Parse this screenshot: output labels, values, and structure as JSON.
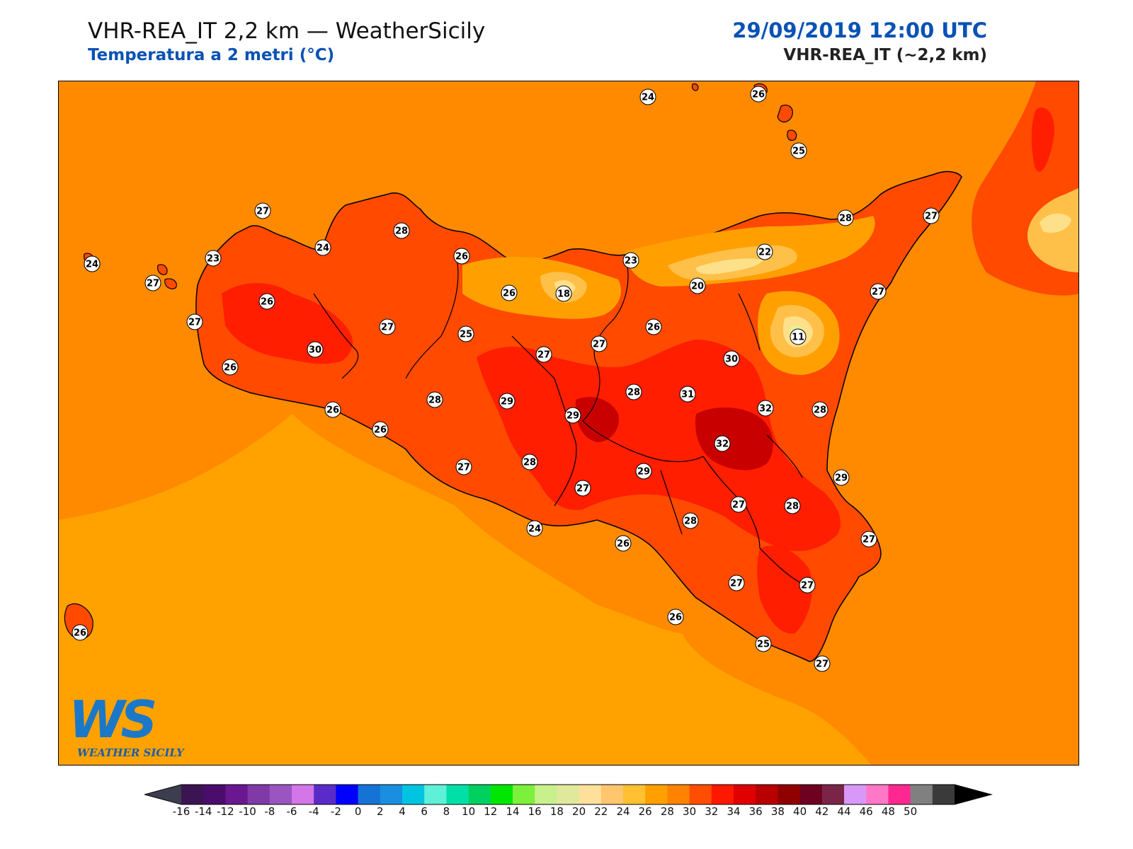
{
  "header": {
    "title": "VHR-REA_IT 2,2 km — WeatherSicily",
    "subtitle": "Temperatura a 2 metri (°C)",
    "datetime": "29/09/2019 12:00 UTC",
    "model": "VHR-REA_IT (~2,2 km)"
  },
  "logo": {
    "letters": "WS",
    "caption": "WEATHER SICILY"
  },
  "colors": {
    "sea": "#ff8a00",
    "sea_south": "#ffa200",
    "land_warm": "#ff4a00",
    "land_hot": "#ff1e00",
    "land_hottest": "#c80000",
    "mountain_mild": "#ffc04a",
    "mountain_cool": "#ffe08a",
    "etna_top": "#e6f09a",
    "coastline": "#000000"
  },
  "temperature_labels": [
    {
      "name": "label-ustica",
      "value": "24"
    },
    {
      "name": "label-alicudi",
      "value": "24"
    },
    {
      "name": "label-stromboli",
      "value": "26"
    },
    {
      "name": "label-lipari",
      "value": "25"
    },
    {
      "name": "label-levanzo",
      "value": "24"
    },
    {
      "name": "label-marettimo",
      "value": "27"
    },
    {
      "name": "label-san-vito",
      "value": "27"
    },
    {
      "name": "label-trapani",
      "value": "23"
    },
    {
      "name": "label-castellammare",
      "value": "24"
    },
    {
      "name": "label-palermo",
      "value": "28"
    },
    {
      "name": "label-termini",
      "value": "26"
    },
    {
      "name": "label-cefalu",
      "value": "23"
    },
    {
      "name": "label-capo-orlando",
      "value": "22"
    },
    {
      "name": "label-milazzo",
      "value": "28"
    },
    {
      "name": "label-messina",
      "value": "27"
    },
    {
      "name": "label-marsala",
      "value": "27"
    },
    {
      "name": "label-erice",
      "value": "26"
    },
    {
      "name": "label-corleone",
      "value": "27"
    },
    {
      "name": "label-castelvetrano",
      "value": "30"
    },
    {
      "name": "label-mazara",
      "value": "26"
    },
    {
      "name": "label-prizzi",
      "value": "25"
    },
    {
      "name": "label-caltavuturo",
      "value": "26"
    },
    {
      "name": "label-madonie",
      "value": "18"
    },
    {
      "name": "label-nebrodi",
      "value": "20"
    },
    {
      "name": "label-taormina",
      "value": "27"
    },
    {
      "name": "label-etna",
      "value": "11"
    },
    {
      "name": "label-nicosia",
      "value": "26"
    },
    {
      "name": "label-petralia",
      "value": "27"
    },
    {
      "name": "label-valledolmo",
      "value": "27"
    },
    {
      "name": "label-bronte",
      "value": "30"
    },
    {
      "name": "label-sciacca",
      "value": "26"
    },
    {
      "name": "label-ribera",
      "value": "26"
    },
    {
      "name": "label-bivona",
      "value": "28"
    },
    {
      "name": "label-mussomeli",
      "value": "29"
    },
    {
      "name": "label-caltanissetta",
      "value": "29"
    },
    {
      "name": "label-enna",
      "value": "28"
    },
    {
      "name": "label-leonforte",
      "value": "31"
    },
    {
      "name": "label-paterno",
      "value": "32"
    },
    {
      "name": "label-acireale",
      "value": "28"
    },
    {
      "name": "label-catania-plain",
      "value": "32"
    },
    {
      "name": "label-agrigento",
      "value": "27"
    },
    {
      "name": "label-canicatti",
      "value": "28"
    },
    {
      "name": "label-catania",
      "value": "29"
    },
    {
      "name": "label-piazza",
      "value": "29"
    },
    {
      "name": "label-riesi",
      "value": "27"
    },
    {
      "name": "label-licata",
      "value": "24"
    },
    {
      "name": "label-caltagirone",
      "value": "27"
    },
    {
      "name": "label-lentini",
      "value": "28"
    },
    {
      "name": "label-niscemi",
      "value": "28"
    },
    {
      "name": "label-gela",
      "value": "26"
    },
    {
      "name": "label-augusta",
      "value": "27"
    },
    {
      "name": "label-ragusa",
      "value": "27"
    },
    {
      "name": "label-noto",
      "value": "27"
    },
    {
      "name": "label-scoglitti",
      "value": "26"
    },
    {
      "name": "label-pozzallo",
      "value": "25"
    },
    {
      "name": "label-pachino",
      "value": "27"
    },
    {
      "name": "label-pantelleria",
      "value": "26"
    }
  ],
  "colorbar": {
    "ticks": [
      "-16",
      "-14",
      "-12",
      "-10",
      "-8",
      "-6",
      "-4",
      "-2",
      "0",
      "2",
      "4",
      "6",
      "8",
      "10",
      "12",
      "14",
      "16",
      "18",
      "20",
      "22",
      "24",
      "26",
      "28",
      "30",
      "32",
      "34",
      "36",
      "38",
      "40",
      "42",
      "44",
      "46",
      "48",
      "50"
    ],
    "colors": [
      "#3b1452",
      "#4a0d6b",
      "#6a1890",
      "#7f3aa8",
      "#9a55c0",
      "#d276e8",
      "#5a2bc8",
      "#0000ff",
      "#1573d6",
      "#1a8fe0",
      "#00c4e0",
      "#5ef0d8",
      "#00e0a6",
      "#00d060",
      "#00e600",
      "#7cf03c",
      "#c8f08c",
      "#e0e89c",
      "#ffe09a",
      "#ffc66e",
      "#ffc032",
      "#ffa000",
      "#ff8200",
      "#ff4e00",
      "#ff1800",
      "#e00000",
      "#b80000",
      "#900000",
      "#6e0020",
      "#7a2448",
      "#d898f8",
      "#ff78c8",
      "#ff2890",
      "#808080",
      "#3a3a3a"
    ],
    "under_color": "#3d3d50",
    "over_color": "#000000"
  }
}
